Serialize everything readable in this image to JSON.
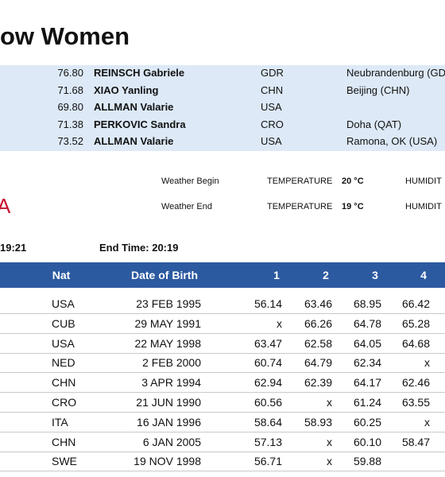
{
  "header": {
    "title": "ow Women"
  },
  "records": [
    {
      "mark": "76.80",
      "name": "REINSCH Gabriele",
      "nat": "GDR",
      "venue": "Neubrandenburg (GD"
    },
    {
      "mark": "71.68",
      "name": "XIAO Yanling",
      "nat": "CHN",
      "venue": "Beijing (CHN)"
    },
    {
      "mark": "69.80",
      "name": "ALLMAN Valarie",
      "nat": "USA"
    },
    {
      "mark": "71.38",
      "name": "PERKOVIC Sandra",
      "nat": "CRO",
      "venue": "Doha (QAT)"
    },
    {
      "mark": "73.52",
      "name": "ALLMAN Valarie",
      "nat": "USA",
      "venue": "Ramona, OK (USA)"
    }
  ],
  "logo": "A",
  "weather": [
    {
      "label": "Weather Begin",
      "temp_label": "TEMPERATURE",
      "temp": "20 °C",
      "humidity_label": "HUMIDIT"
    },
    {
      "label": "Weather End",
      "temp_label": "TEMPERATURE",
      "temp": "19 °C",
      "humidity_label": "HUMIDIT"
    }
  ],
  "times": {
    "start": "19:21",
    "end": "End Time: 20:19"
  },
  "table": {
    "columns": [
      "Nat",
      "Date of Birth",
      "1",
      "2",
      "3",
      "4"
    ],
    "rows": [
      [
        "USA",
        "23 FEB 1995",
        "56.14",
        "63.46",
        "68.95",
        "66.42"
      ],
      [
        "CUB",
        "29 MAY 1991",
        "x",
        "66.26",
        "64.78",
        "65.28"
      ],
      [
        "USA",
        "22 MAY 1998",
        "63.47",
        "62.58",
        "64.05",
        "64.68"
      ],
      [
        "NED",
        "2 FEB 2000",
        "60.74",
        "64.79",
        "62.34",
        "x"
      ],
      [
        "CHN",
        "3 APR 1994",
        "62.94",
        "62.39",
        "64.17",
        "62.46"
      ],
      [
        "CRO",
        "21 JUN 1990",
        "60.56",
        "x",
        "61.24",
        "63.55"
      ],
      [
        "ITA",
        "16 JAN 1996",
        "58.64",
        "58.93",
        "60.25",
        "x"
      ],
      [
        "CHN",
        "6 JAN 2005",
        "57.13",
        "x",
        "60.10",
        "58.47"
      ],
      [
        "SWE",
        "19 NOV 1998",
        "56.71",
        "x",
        "59.88"
      ]
    ]
  }
}
